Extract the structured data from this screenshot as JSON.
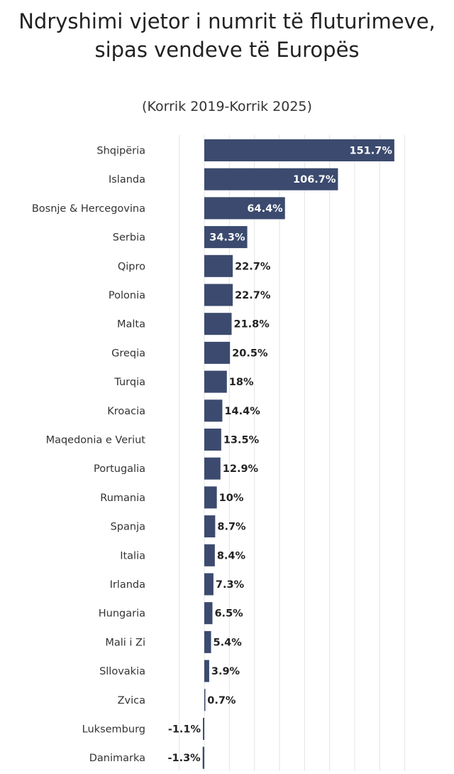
{
  "chart_data": {
    "type": "bar",
    "orientation": "horizontal",
    "title": "Ndryshimi vjetor i numrit të fluturimeve, sipas vendeve të Europës",
    "subtitle": "(Korrik 2019-Korrik 2025)",
    "xlabel": "",
    "ylabel": "",
    "xlim": [
      -20,
      160
    ],
    "grid": true,
    "bar_color": "#3b4a6e",
    "categories": [
      "Shqipëria",
      "Islanda",
      "Bosnje & Hercegovina",
      "Serbia",
      "Qipro",
      "Polonia",
      "Malta",
      "Greqia",
      "Turqia",
      "Kroacia",
      "Maqedonia e Veriut",
      "Portugalia",
      "Rumania",
      "Spanja",
      "Italia",
      "Irlanda",
      "Hungaria",
      "Mali i Zi",
      "Sllovakia",
      "Zvica",
      "Luksemburg",
      "Danimarka"
    ],
    "values": [
      151.7,
      106.7,
      64.4,
      34.3,
      22.7,
      22.7,
      21.8,
      20.5,
      18,
      14.4,
      13.5,
      12.9,
      10,
      8.7,
      8.4,
      7.3,
      6.5,
      5.4,
      3.9,
      0.7,
      -1.1,
      -1.3
    ],
    "labels": [
      "151.7%",
      "106.7%",
      "64.4%",
      "34.3%",
      "22.7%",
      "22.7%",
      "21.8%",
      "20.5%",
      "18%",
      "14.4%",
      "13.5%",
      "12.9%",
      "10%",
      "8.7%",
      "8.4%",
      "7.3%",
      "6.5%",
      "5.4%",
      "3.9%",
      "0.7%",
      "-1.1%",
      "-1.3%"
    ]
  }
}
